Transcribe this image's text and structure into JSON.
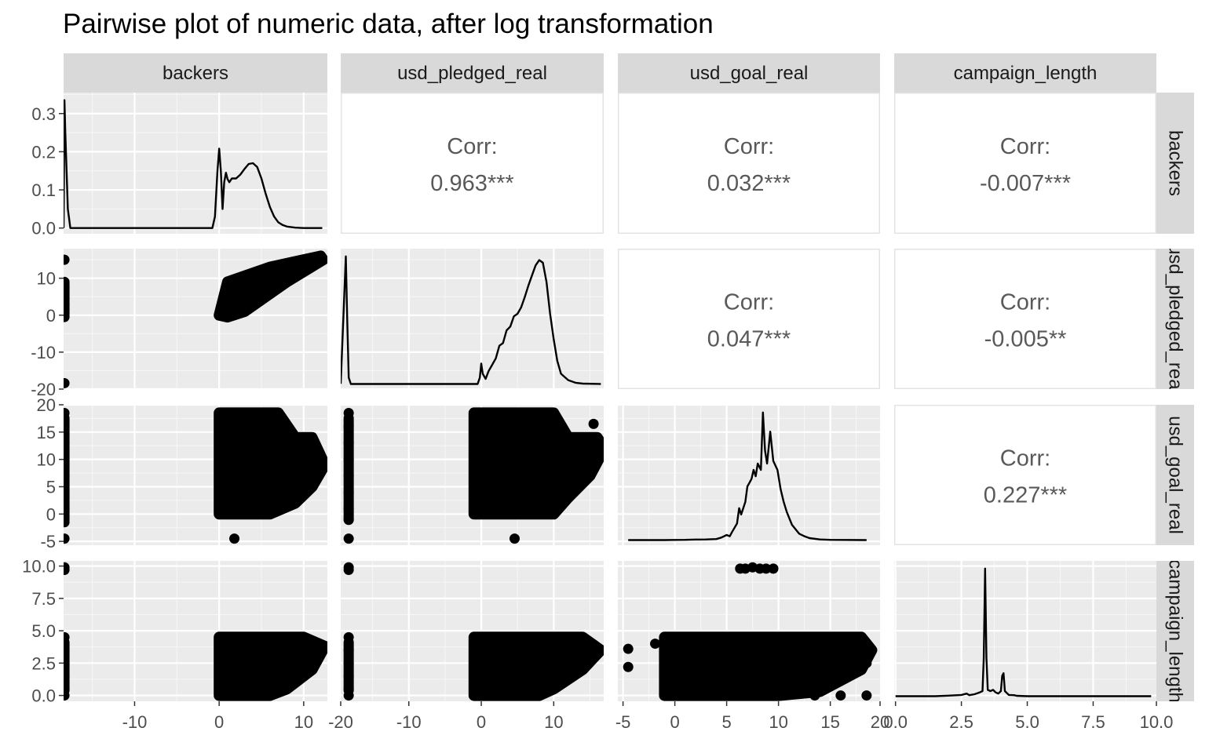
{
  "title": "Pairwise plot of numeric data, after log transformation",
  "chart_data": {
    "type": "scatter",
    "title": "Pairwise plot of numeric data, after log transformation",
    "variables": [
      "backers",
      "usd_pledged_real",
      "usd_goal_real",
      "campaign_length"
    ],
    "row_labels": [
      "backers",
      "usd_pledged_real",
      "usd_goal_real",
      "campaign_length"
    ],
    "x_axes": [
      {
        "range": [
          -18.4,
          12.8
        ],
        "ticks": [
          -10,
          0,
          10
        ],
        "tick_labels": [
          "-10",
          "0",
          "10"
        ]
      },
      {
        "range": [
          -19.4,
          16.9
        ],
        "ticks": [
          -20,
          -10,
          0,
          10
        ],
        "tick_labels": [
          "-20",
          "-10",
          "0",
          "10"
        ]
      },
      {
        "range": [
          -5.5,
          19.8
        ],
        "ticks": [
          -5,
          0,
          5,
          10,
          15,
          20
        ],
        "tick_labels": [
          "-5",
          "0",
          "5",
          "10",
          "15",
          "20"
        ]
      },
      {
        "range": [
          -0.05,
          9.9
        ],
        "ticks": [
          0,
          2.5,
          5,
          7.5,
          10
        ],
        "tick_labels": [
          "0.0",
          "2.5",
          "5.0",
          "7.5",
          "10.0"
        ]
      }
    ],
    "y_axes": [
      {
        "range": [
          -0.015,
          0.355
        ],
        "ticks": [
          0,
          0.1,
          0.2,
          0.3
        ],
        "tick_labels": [
          "0.0",
          "0.1",
          "0.2",
          "0.3"
        ]
      },
      {
        "range": [
          -20,
          18
        ],
        "ticks": [
          -20,
          -10,
          0,
          10
        ],
        "tick_labels": [
          "-20",
          "-10",
          "0",
          "10"
        ]
      },
      {
        "range": [
          -5.7,
          20.0
        ],
        "ticks": [
          -5,
          0,
          5,
          10,
          15,
          20
        ],
        "tick_labels": [
          "-5",
          "0",
          "5",
          "10",
          "15",
          "20"
        ]
      },
      {
        "range": [
          -0.45,
          10.4
        ],
        "ticks": [
          0,
          2.5,
          5,
          7.5,
          10
        ],
        "tick_labels": [
          "0.0",
          "2.5",
          "5.0",
          "7.5",
          "10.0"
        ]
      }
    ],
    "correlations": [
      {
        "row": 0,
        "col": 1,
        "label": "Corr:",
        "value": "0.963***"
      },
      {
        "row": 0,
        "col": 2,
        "label": "Corr:",
        "value": "0.032***"
      },
      {
        "row": 0,
        "col": 3,
        "label": "Corr:",
        "value": "-0.007***"
      },
      {
        "row": 1,
        "col": 2,
        "label": "Corr:",
        "value": "0.047***"
      },
      {
        "row": 1,
        "col": 3,
        "label": "Corr:",
        "value": "-0.005**"
      },
      {
        "row": 2,
        "col": 3,
        "label": "Corr:",
        "value": "0.227***"
      }
    ],
    "densities": [
      {
        "var": "backers",
        "points": [
          [
            -18.4,
            0
          ],
          [
            -18.3,
            0.335
          ],
          [
            -18.2,
            0.25
          ],
          [
            -17.9,
            0.05
          ],
          [
            -17.6,
            0
          ],
          [
            -0.8,
            0
          ],
          [
            -0.5,
            0.03
          ],
          [
            -0.2,
            0.15
          ],
          [
            0,
            0.208
          ],
          [
            0.2,
            0.15
          ],
          [
            0.4,
            0.05
          ],
          [
            0.6,
            0.12
          ],
          [
            0.8,
            0.145
          ],
          [
            1.0,
            0.128
          ],
          [
            1.2,
            0.12
          ],
          [
            1.5,
            0.13
          ],
          [
            2.0,
            0.13
          ],
          [
            2.5,
            0.14
          ],
          [
            3.0,
            0.155
          ],
          [
            3.5,
            0.168
          ],
          [
            4.0,
            0.17
          ],
          [
            4.5,
            0.16
          ],
          [
            5.0,
            0.13
          ],
          [
            5.5,
            0.09
          ],
          [
            6.0,
            0.055
          ],
          [
            6.5,
            0.03
          ],
          [
            7.0,
            0.015
          ],
          [
            7.5,
            0.008
          ],
          [
            8.0,
            0.004
          ],
          [
            9.0,
            0.001
          ],
          [
            10.0,
            0
          ],
          [
            12.2,
            0
          ]
        ]
      },
      {
        "var": "usd_pledged_real",
        "points": [
          [
            -19.4,
            0.001
          ],
          [
            -18.7,
            1.0
          ],
          [
            -18.5,
            0.5
          ],
          [
            -18.3,
            0.05
          ],
          [
            -18.0,
            0
          ],
          [
            -0.5,
            0
          ],
          [
            -0.2,
            0.05
          ],
          [
            0,
            0.16
          ],
          [
            0.2,
            0.08
          ],
          [
            0.6,
            0.04
          ],
          [
            1.0,
            0.1
          ],
          [
            1.5,
            0.15
          ],
          [
            2.0,
            0.2
          ],
          [
            2.5,
            0.3
          ],
          [
            3.0,
            0.32
          ],
          [
            3.5,
            0.42
          ],
          [
            4.0,
            0.45
          ],
          [
            4.5,
            0.53
          ],
          [
            5.0,
            0.55
          ],
          [
            5.5,
            0.6
          ],
          [
            6.0,
            0.68
          ],
          [
            6.5,
            0.77
          ],
          [
            7.0,
            0.85
          ],
          [
            7.5,
            0.93
          ],
          [
            8.0,
            0.97
          ],
          [
            8.5,
            0.95
          ],
          [
            9.0,
            0.8
          ],
          [
            9.5,
            0.55
          ],
          [
            10.0,
            0.35
          ],
          [
            10.5,
            0.18
          ],
          [
            11.0,
            0.08
          ],
          [
            12.0,
            0.03
          ],
          [
            13.0,
            0.01
          ],
          [
            14.0,
            0.003
          ],
          [
            16.5,
            0
          ]
        ]
      },
      {
        "var": "usd_goal_real",
        "points": [
          [
            -4.5,
            0.0
          ],
          [
            -1,
            0.0
          ],
          [
            0,
            0.001
          ],
          [
            1,
            0.002
          ],
          [
            2,
            0.004
          ],
          [
            3,
            0.005
          ],
          [
            4,
            0.008
          ],
          [
            4.5,
            0.02
          ],
          [
            5.0,
            0.04
          ],
          [
            5.3,
            0.03
          ],
          [
            5.5,
            0.06
          ],
          [
            6.0,
            0.13
          ],
          [
            6.2,
            0.25
          ],
          [
            6.4,
            0.2
          ],
          [
            6.8,
            0.3
          ],
          [
            7.0,
            0.42
          ],
          [
            7.2,
            0.45
          ],
          [
            7.4,
            0.48
          ],
          [
            7.6,
            0.55
          ],
          [
            7.8,
            0.5
          ],
          [
            8.0,
            0.6
          ],
          [
            8.3,
            0.55
          ],
          [
            8.5,
            1.0
          ],
          [
            8.7,
            0.7
          ],
          [
            8.9,
            0.6
          ],
          [
            9.2,
            0.85
          ],
          [
            9.5,
            0.62
          ],
          [
            9.9,
            0.55
          ],
          [
            10.2,
            0.4
          ],
          [
            10.5,
            0.3
          ],
          [
            10.8,
            0.22
          ],
          [
            11.0,
            0.18
          ],
          [
            11.3,
            0.12
          ],
          [
            11.5,
            0.1
          ],
          [
            12.0,
            0.05
          ],
          [
            12.5,
            0.03
          ],
          [
            13.0,
            0.015
          ],
          [
            14.0,
            0.005
          ],
          [
            15.0,
            0.002
          ],
          [
            18.5,
            0.0
          ]
        ]
      },
      {
        "var": "campaign_length",
        "points": [
          [
            0.0,
            0
          ],
          [
            1.5,
            0
          ],
          [
            2.0,
            0.004
          ],
          [
            2.5,
            0.01
          ],
          [
            2.7,
            0.02
          ],
          [
            2.8,
            0.008
          ],
          [
            3.0,
            0.015
          ],
          [
            3.2,
            0.03
          ],
          [
            3.3,
            0.04
          ],
          [
            3.35,
            0.3
          ],
          [
            3.4,
            1.0
          ],
          [
            3.45,
            0.3
          ],
          [
            3.5,
            0.05
          ],
          [
            3.6,
            0.04
          ],
          [
            3.7,
            0.05
          ],
          [
            3.8,
            0.03
          ],
          [
            3.9,
            0.02
          ],
          [
            4.0,
            0.04
          ],
          [
            4.05,
            0.16
          ],
          [
            4.1,
            0.18
          ],
          [
            4.15,
            0.04
          ],
          [
            4.3,
            0.01
          ],
          [
            4.5,
            0.008
          ],
          [
            4.6,
            0.003
          ],
          [
            5.0,
            0.0
          ],
          [
            9.7,
            0
          ]
        ]
      }
    ],
    "scatter_clouds": [
      {
        "row": 1,
        "col": 0,
        "x_var": "backers",
        "y_var": "usd_pledged_real",
        "point_count_shown": "thousands",
        "bounds": [
          [
            0,
            0
          ],
          [
            1,
            9
          ],
          [
            6,
            13
          ],
          [
            12,
            16
          ],
          [
            12.3,
            15
          ],
          [
            8,
            9
          ],
          [
            3,
            1
          ],
          [
            1,
            -0.5
          ]
        ]
      },
      {
        "row": 2,
        "col": 0,
        "x_var": "backers",
        "y_var": "usd_goal_real",
        "bounds": [
          [
            0,
            18.5
          ],
          [
            7,
            18.5
          ],
          [
            9,
            14
          ],
          [
            11,
            14
          ],
          [
            12.5,
            9
          ],
          [
            11,
            5
          ],
          [
            9,
            2
          ],
          [
            6,
            0
          ],
          [
            0,
            0
          ]
        ]
      },
      {
        "row": 2,
        "col": 1,
        "x_var": "usd_pledged_real",
        "y_var": "usd_goal_real",
        "bounds": [
          [
            -1,
            18.5
          ],
          [
            10,
            18.5
          ],
          [
            12,
            14
          ],
          [
            16,
            14
          ],
          [
            17,
            12
          ],
          [
            15,
            7
          ],
          [
            12,
            3
          ],
          [
            10,
            0
          ],
          [
            -1,
            0
          ]
        ]
      },
      {
        "row": 3,
        "col": 0,
        "x_var": "backers",
        "y_var": "campaign_length",
        "bounds": [
          [
            0,
            0
          ],
          [
            0,
            4.5
          ],
          [
            10,
            4.5
          ],
          [
            12.5,
            3.8
          ],
          [
            11,
            2
          ],
          [
            8,
            0.5
          ],
          [
            6,
            0
          ]
        ]
      },
      {
        "row": 3,
        "col": 1,
        "x_var": "usd_pledged_real",
        "y_var": "campaign_length",
        "bounds": [
          [
            -1,
            0
          ],
          [
            -1,
            4.5
          ],
          [
            14,
            4.5
          ],
          [
            16.5,
            3.5
          ],
          [
            14,
            2
          ],
          [
            10,
            0.5
          ],
          [
            8,
            0
          ]
        ]
      },
      {
        "row": 3,
        "col": 2,
        "x_var": "usd_goal_real",
        "y_var": "campaign_length",
        "bounds": [
          [
            -1,
            0
          ],
          [
            -1,
            4.5
          ],
          [
            18,
            4.5
          ],
          [
            19,
            3.5
          ],
          [
            18,
            2
          ],
          [
            14,
            0.3
          ],
          [
            10,
            0
          ]
        ]
      }
    ],
    "outlier_points": [
      {
        "row": 1,
        "col": 0,
        "pts": [
          [
            -18.3,
            15
          ],
          [
            -18.3,
            9
          ],
          [
            -18.3,
            7.5
          ],
          [
            -18.3,
            6
          ],
          [
            -18.3,
            4.5
          ],
          [
            -18.3,
            3
          ],
          [
            -18.3,
            1.5
          ],
          [
            -18.3,
            0
          ],
          [
            -18.3,
            -0.5
          ],
          [
            -18.3,
            -18.4
          ]
        ]
      },
      {
        "row": 2,
        "col": 0,
        "pts": [
          [
            -18.3,
            18.5
          ],
          [
            -18.3,
            16
          ],
          [
            -18.3,
            13
          ],
          [
            -18.3,
            10
          ],
          [
            -18.3,
            7
          ],
          [
            -18.3,
            4
          ],
          [
            -18.3,
            1
          ],
          [
            -18.3,
            -1.5
          ],
          [
            -18.3,
            -4.5
          ],
          [
            1.8,
            -4.5
          ],
          [
            8.5,
            2.5
          ],
          [
            8.2,
            4.5
          ],
          [
            10.5,
            11.5
          ],
          [
            6.3,
            15
          ]
        ]
      },
      {
        "row": 2,
        "col": 1,
        "pts": [
          [
            -18.3,
            18.5
          ],
          [
            -18.3,
            16
          ],
          [
            -18.3,
            13
          ],
          [
            -18.3,
            10
          ],
          [
            -18.3,
            7
          ],
          [
            -18.3,
            4
          ],
          [
            -18.3,
            1
          ],
          [
            -18.3,
            -1
          ],
          [
            -18.3,
            -4.5
          ],
          [
            4.6,
            -4.5
          ],
          [
            11,
            2.5
          ],
          [
            11.5,
            10
          ],
          [
            15.5,
            16.5
          ],
          [
            11.3,
            2.5
          ]
        ]
      },
      {
        "row": 3,
        "col": 0,
        "pts": [
          [
            -18.3,
            9.7
          ],
          [
            -18.3,
            9.9
          ],
          [
            -18.3,
            4.5
          ],
          [
            -18.3,
            3.5
          ],
          [
            -18.3,
            2.5
          ],
          [
            -18.3,
            1.5
          ],
          [
            -18.3,
            0.5
          ],
          [
            -18.3,
            0
          ]
        ]
      },
      {
        "row": 3,
        "col": 1,
        "pts": [
          [
            -18.3,
            9.7
          ],
          [
            -18.3,
            9.9
          ],
          [
            -18.3,
            4.5
          ],
          [
            -18.3,
            3.5
          ],
          [
            -18.3,
            2.5
          ],
          [
            -18.3,
            1.5
          ],
          [
            -18.3,
            0.5
          ],
          [
            -18.3,
            0
          ]
        ]
      },
      {
        "row": 3,
        "col": 2,
        "pts": [
          [
            6.3,
            9.8
          ],
          [
            6.8,
            9.8
          ],
          [
            7.5,
            9.9
          ],
          [
            8.2,
            9.8
          ],
          [
            8.8,
            9.8
          ],
          [
            9.5,
            9.8
          ],
          [
            -4.5,
            3.6
          ],
          [
            -4.5,
            2.2
          ],
          [
            -1.9,
            4.0
          ],
          [
            -0.8,
            3.6
          ],
          [
            0,
            0
          ],
          [
            1.0,
            0
          ],
          [
            13.5,
            0
          ],
          [
            16,
            0
          ],
          [
            18.5,
            0
          ],
          [
            18.5,
            2.5
          ],
          [
            18,
            3.5
          ]
        ]
      }
    ]
  }
}
